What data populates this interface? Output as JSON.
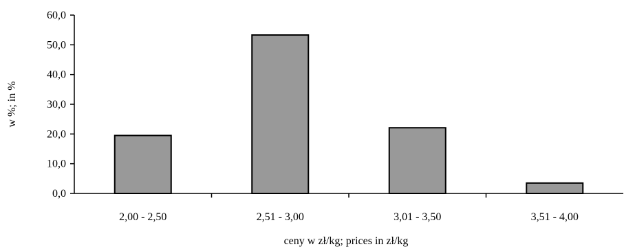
{
  "chart_data": {
    "type": "bar",
    "title": "",
    "xlabel": "ceny w zł/kg; prices in zł/kg",
    "ylabel": "w %; in %",
    "categories": [
      "2,00 - 2,50",
      "2,51 - 3,00",
      "3,01 - 3,50",
      "3,51 - 4,00"
    ],
    "values": [
      19.5,
      53.3,
      22.1,
      3.5
    ],
    "ylim": [
      0,
      60
    ],
    "yticks": [
      "0,0",
      "10,0",
      "20,0",
      "30,0",
      "40,0",
      "50,0",
      "60,0"
    ],
    "grid": false,
    "legend": "none",
    "bar_color": "#999999",
    "bar_edge_color": "#000000"
  }
}
